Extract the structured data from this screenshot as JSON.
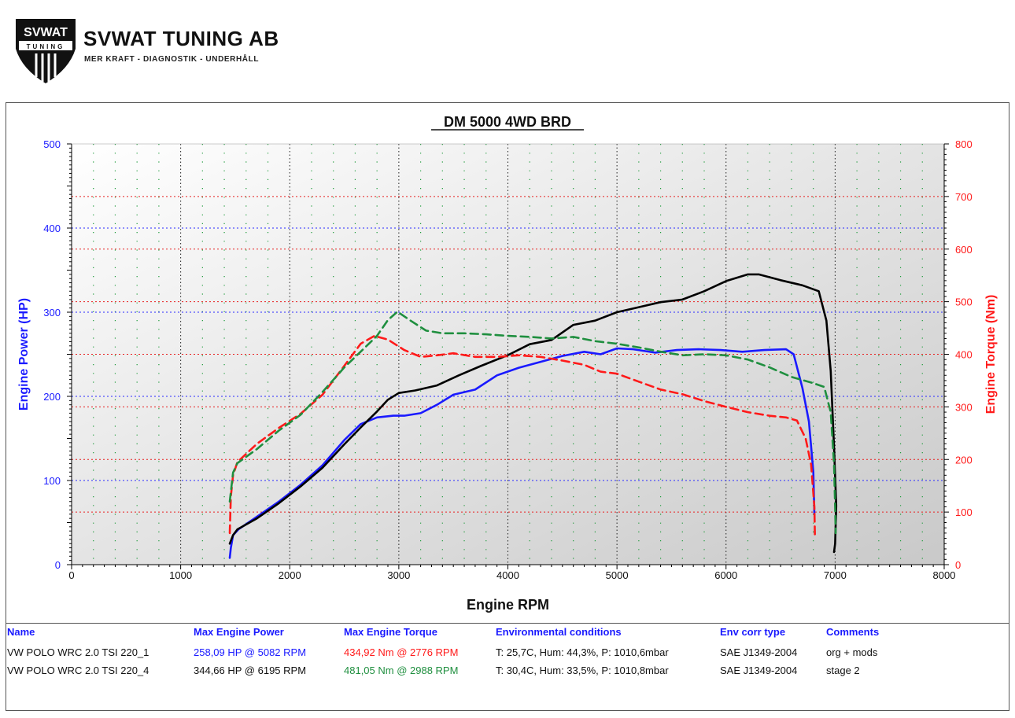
{
  "header": {
    "logo_text": "SVWAT",
    "logo_subtext": "TUNING",
    "company": "SVWAT TUNING AB",
    "tagline": "MER KRAFT - DIAGNOSTIK - UNDERHÅLL"
  },
  "chart_data": {
    "type": "line",
    "title": "DM 5000 4WD BRD",
    "xlabel": "Engine RPM",
    "ylabel": "Engine Power (HP)",
    "y2label": "Engine Torque (Nm)",
    "xlim": [
      0,
      8000
    ],
    "ylim": [
      0,
      500
    ],
    "y2lim": [
      0,
      800
    ],
    "x_ticks": [
      "0",
      "1000",
      "2000",
      "3000",
      "4000",
      "5000",
      "6000",
      "7000",
      "8000"
    ],
    "y_ticks": [
      "0",
      "100",
      "200",
      "300",
      "400",
      "500"
    ],
    "y2_ticks": [
      "0",
      "100",
      "200",
      "300",
      "400",
      "500",
      "600",
      "700",
      "800"
    ],
    "grid": true,
    "series": [
      {
        "axis": "left",
        "color": "#1a1aff",
        "style": "solid",
        "x": [
          1450,
          1460,
          1480,
          1530,
          1700,
          1900,
          2100,
          2300,
          2500,
          2650,
          2800,
          2950,
          3050,
          3200,
          3350,
          3500,
          3700,
          3900,
          4100,
          4300,
          4500,
          4700,
          4850,
          5000,
          5150,
          5350,
          5550,
          5750,
          5950,
          6150,
          6350,
          6550,
          6620,
          6700,
          6760,
          6800,
          6810
        ],
        "y": [
          8,
          20,
          35,
          42,
          57,
          75,
          95,
          118,
          148,
          167,
          175,
          177,
          177,
          180,
          190,
          202,
          208,
          225,
          234,
          241,
          248,
          253,
          250,
          257,
          256,
          252,
          255,
          256,
          255,
          253,
          255,
          256,
          250,
          210,
          170,
          110,
          60
        ]
      },
      {
        "axis": "left",
        "color": "#000000",
        "style": "solid",
        "x": [
          1450,
          1480,
          1520,
          1700,
          1900,
          2100,
          2300,
          2500,
          2650,
          2800,
          2900,
          3000,
          3150,
          3350,
          3550,
          3750,
          4000,
          4200,
          4400,
          4600,
          4800,
          5000,
          5200,
          5400,
          5600,
          5800,
          6000,
          6200,
          6300,
          6500,
          6700,
          6850,
          6920,
          6960,
          6990,
          7010,
          7000,
          6990
        ],
        "y": [
          25,
          35,
          42,
          55,
          73,
          93,
          115,
          143,
          163,
          182,
          196,
          204,
          207,
          213,
          225,
          236,
          249,
          262,
          267,
          285,
          290,
          300,
          306,
          312,
          315,
          325,
          337,
          345,
          345,
          338,
          332,
          325,
          290,
          230,
          140,
          70,
          25,
          15
        ]
      },
      {
        "axis": "right",
        "color": "#ff1a1a",
        "style": "dashed",
        "x": [
          1450,
          1460,
          1480,
          1520,
          1700,
          1900,
          2100,
          2300,
          2500,
          2650,
          2776,
          2900,
          3050,
          3200,
          3350,
          3500,
          3700,
          3900,
          4100,
          4300,
          4500,
          4700,
          4850,
          5000,
          5200,
          5400,
          5600,
          5800,
          6000,
          6200,
          6400,
          6550,
          6650,
          6730,
          6780,
          6810,
          6815
        ],
        "y": [
          60,
          130,
          170,
          195,
          230,
          260,
          287,
          323,
          378,
          420,
          435,
          428,
          408,
          395,
          398,
          402,
          395,
          395,
          398,
          395,
          388,
          380,
          367,
          363,
          348,
          333,
          324,
          311,
          300,
          290,
          283,
          280,
          274,
          240,
          190,
          110,
          55
        ]
      },
      {
        "axis": "right",
        "color": "#1f8f3f",
        "style": "dashed",
        "x": [
          1450,
          1480,
          1520,
          1700,
          1900,
          2100,
          2300,
          2500,
          2650,
          2800,
          2900,
          2988,
          3100,
          3250,
          3400,
          3600,
          3800,
          4000,
          4200,
          4400,
          4600,
          4800,
          5000,
          5200,
          5400,
          5600,
          5800,
          6000,
          6200,
          6400,
          6600,
          6800,
          6900,
          6960,
          6990,
          7000,
          7005
        ],
        "y": [
          120,
          175,
          193,
          220,
          255,
          285,
          328,
          375,
          405,
          435,
          465,
          481,
          465,
          445,
          440,
          440,
          438,
          435,
          433,
          430,
          433,
          425,
          420,
          413,
          405,
          398,
          400,
          398,
          390,
          375,
          357,
          345,
          338,
          290,
          190,
          110,
          60
        ]
      }
    ]
  },
  "table": {
    "headers": [
      "Name",
      "Max Engine Power",
      "Max Engine Torque",
      "Environmental conditions",
      "Env corr type",
      "Comments"
    ],
    "rows": [
      [
        "VW POLO WRC 2.0 TSI 220_1",
        "258,09 HP @ 5082 RPM",
        "434,92 Nm @ 2776 RPM",
        "T: 25,7C, Hum: 44,3%, P: 1010,6mbar",
        "SAE J1349-2004",
        "org + mods"
      ],
      [
        "VW POLO WRC 2.0 TSI 220_4",
        "344,66 HP @ 6195 RPM",
        "481,05 Nm @ 2988 RPM",
        "T: 30,4C, Hum: 33,5%, P: 1010,8mbar",
        "SAE J1349-2004",
        "stage 2"
      ]
    ]
  }
}
